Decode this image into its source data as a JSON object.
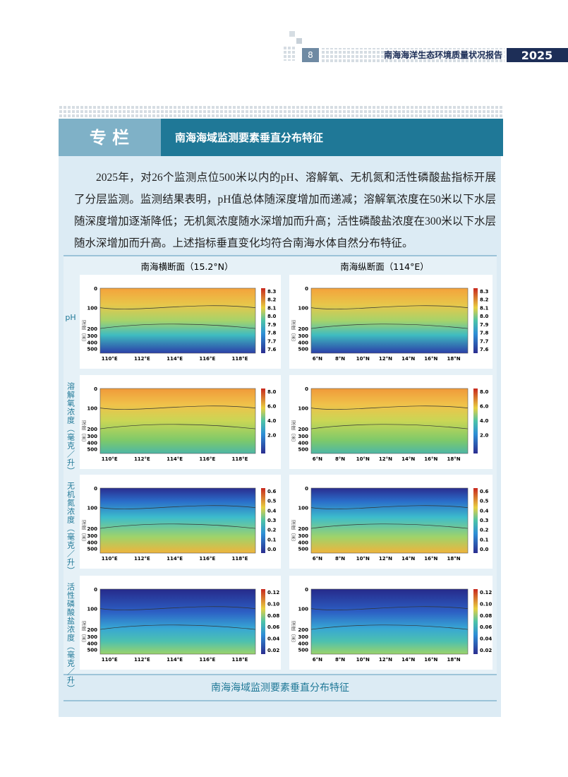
{
  "header": {
    "page_number": "8",
    "report_title": "南海海洋生态环境质量状况报告",
    "year": "2025"
  },
  "column": {
    "tag": "专 栏",
    "title": "南海海域监测要素垂直分布特征"
  },
  "paragraph": "2025年，对26个监测点位500米以内的pH、溶解氧、无机氮和活性磷酸盐指标开展了分层监测。监测结果表明，pH值总体随深度增加而递减；溶解氧浓度在50米以下水层随深度增加逐渐降低；无机氮浓度随水深增加而升高；活性磷酸盐浓度在300米以下水层随水深增加而升高。上述指标垂直变化均符合南海水体自然分布特征。",
  "figure": {
    "column_titles": [
      "南海横断面（15.2°N）",
      "南海纵断面（114°E）"
    ],
    "depth_label": "深度（米）",
    "depth_ticks": [
      "0",
      "100",
      "200",
      "300",
      "400",
      "500"
    ],
    "x_ticks": [
      [
        "110°E",
        "112°E",
        "114°E",
        "116°E",
        "118°E"
      ],
      [
        "6°N",
        "8°N",
        "10°N",
        "12°N",
        "14°N",
        "16°N",
        "18°N"
      ]
    ],
    "rows": [
      {
        "label": "pH",
        "colorbar": [
          "8.3",
          "8.2",
          "8.1",
          "8.0",
          "7.9",
          "7.8",
          "7.7",
          "7.6"
        ]
      },
      {
        "label": "溶解氧浓度（毫克／升）",
        "colorbar": [
          "8.0",
          "6.0",
          "4.0",
          "2.0"
        ]
      },
      {
        "label": "无机氮浓度（毫克／升）",
        "colorbar": [
          "0.6",
          "0.5",
          "0.4",
          "0.3",
          "0.2",
          "0.1",
          "0.0"
        ]
      },
      {
        "label": "活性磷酸盐浓度（毫克／升）",
        "colorbar": [
          "0.12",
          "0.10",
          "0.08",
          "0.06",
          "0.04",
          "0.02"
        ]
      }
    ],
    "caption": "南海海域监测要素垂直分布特征"
  }
}
